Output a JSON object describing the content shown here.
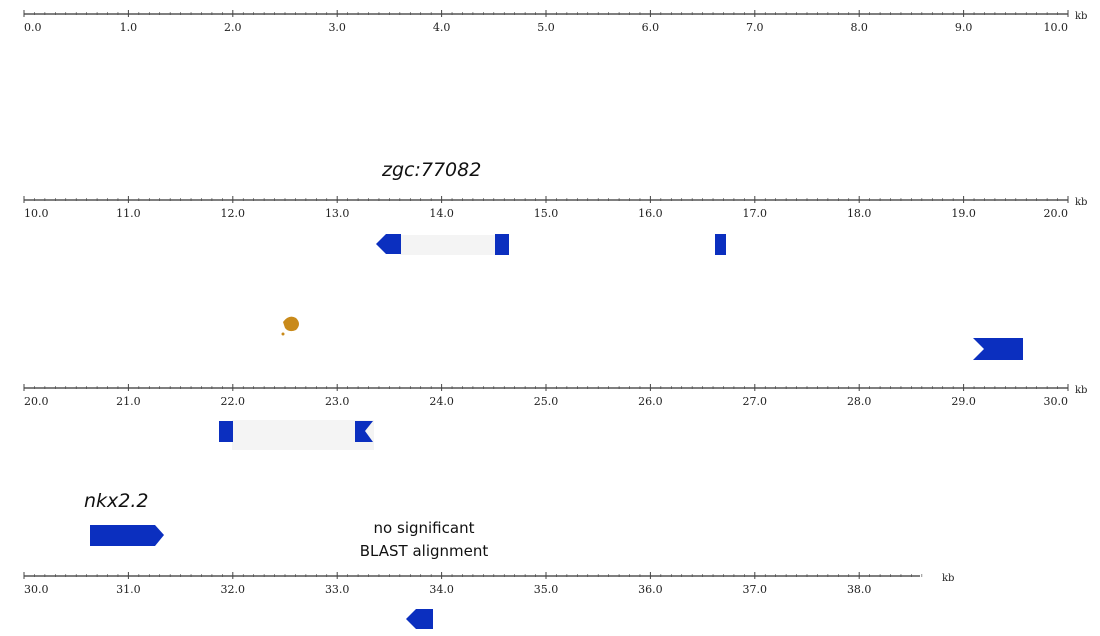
{
  "colors": {
    "exon": "#0b2fbf",
    "intron_band": "#f4f4f4",
    "axis": "#333333",
    "spot": "#c98a1a"
  },
  "unit": "kb",
  "tracks": [
    {
      "id": "track-0",
      "ticks": [
        "0.0",
        "1.0",
        "2.0",
        "3.0",
        "4.0",
        "5.0",
        "6.0",
        "7.0",
        "8.0",
        "9.0",
        "10.0"
      ],
      "start": 0,
      "end": 10
    },
    {
      "id": "track-1",
      "ticks": [
        "10.0",
        "11.0",
        "12.0",
        "13.0",
        "14.0",
        "15.0",
        "16.0",
        "17.0",
        "18.0",
        "19.0",
        "20.0"
      ],
      "start": 10,
      "end": 20
    },
    {
      "id": "track-2",
      "ticks": [
        "20.0",
        "21.0",
        "22.0",
        "23.0",
        "24.0",
        "25.0",
        "26.0",
        "27.0",
        "28.0",
        "29.0",
        "30.0"
      ],
      "start": 20,
      "end": 30
    },
    {
      "id": "track-3",
      "ticks": [
        "30.0",
        "31.0",
        "32.0",
        "33.0",
        "34.0",
        "35.0",
        "36.0",
        "37.0",
        "38.0"
      ],
      "start": 30,
      "end": 38.6
    }
  ],
  "labels": {
    "gene1": "zgc:77082",
    "gene2": "nkx2.2",
    "note_line1": "no significant",
    "note_line2": "BLAST alignment"
  }
}
